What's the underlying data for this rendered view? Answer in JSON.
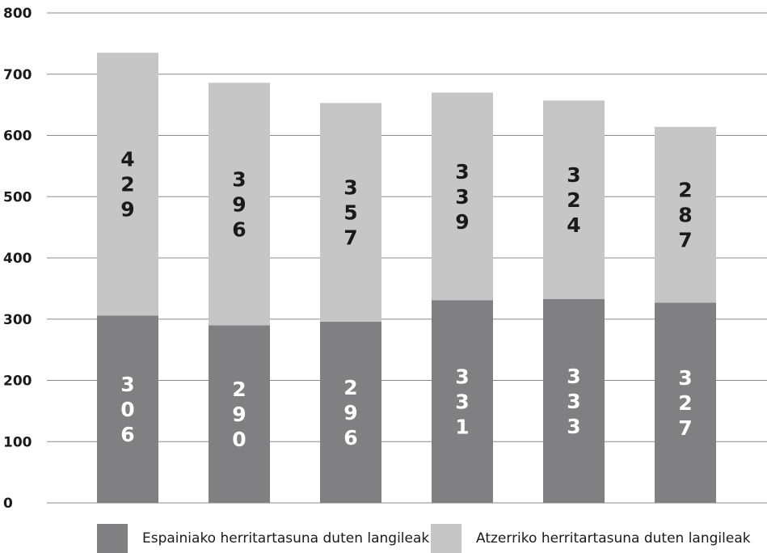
{
  "chart_data": {
    "type": "bar",
    "stacked": true,
    "categories": [
      "",
      "",
      "",
      "",
      "",
      ""
    ],
    "series": [
      {
        "name": "Espainiako herritartasuna duten langileak",
        "values": [
          306,
          290,
          296,
          331,
          333,
          327
        ],
        "color": "#808083",
        "label_color": "#ffffff"
      },
      {
        "name": "Atzerriko herritartasuna duten langileak",
        "values": [
          429,
          396,
          357,
          339,
          324,
          287
        ],
        "color": "#c6c6c7",
        "label_color": "#1a1a1a"
      }
    ],
    "yticks": [
      0,
      100,
      200,
      300,
      400,
      500,
      600,
      700,
      800
    ],
    "ylim": [
      0,
      800
    ],
    "grid": true,
    "legend_position": "bottom",
    "title": "",
    "xlabel": "",
    "ylabel": ""
  }
}
